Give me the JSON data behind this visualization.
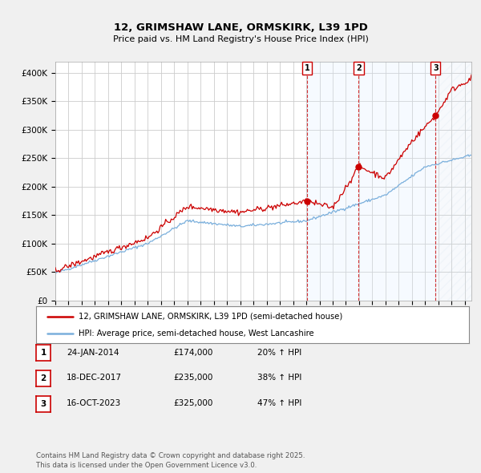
{
  "title": "12, GRIMSHAW LANE, ORMSKIRK, L39 1PD",
  "subtitle": "Price paid vs. HM Land Registry's House Price Index (HPI)",
  "ylim": [
    0,
    420000
  ],
  "xlim_start": 1995.0,
  "xlim_end": 2026.5,
  "background_color": "#f0f0f0",
  "plot_bg_color": "#ffffff",
  "grid_color": "#cccccc",
  "red_color": "#cc0000",
  "blue_color": "#7aafdc",
  "shade_color": "#ddeeff",
  "hatch_color": "#ccddee",
  "sale_dates": [
    2014.07,
    2017.97,
    2023.79
  ],
  "sale_prices": [
    174000,
    235000,
    325000
  ],
  "sale_labels": [
    "1",
    "2",
    "3"
  ],
  "legend_entries": [
    "12, GRIMSHAW LANE, ORMSKIRK, L39 1PD (semi-detached house)",
    "HPI: Average price, semi-detached house, West Lancashire"
  ],
  "table_data": [
    [
      "1",
      "24-JAN-2014",
      "£174,000",
      "20% ↑ HPI"
    ],
    [
      "2",
      "18-DEC-2017",
      "£235,000",
      "38% ↑ HPI"
    ],
    [
      "3",
      "16-OCT-2023",
      "£325,000",
      "47% ↑ HPI"
    ]
  ],
  "footer": "Contains HM Land Registry data © Crown copyright and database right 2025.\nThis data is licensed under the Open Government Licence v3.0.",
  "ytick_labels": [
    "£0",
    "£50K",
    "£100K",
    "£150K",
    "£200K",
    "£250K",
    "£300K",
    "£350K",
    "£400K"
  ],
  "ytick_values": [
    0,
    50000,
    100000,
    150000,
    200000,
    250000,
    300000,
    350000,
    400000
  ],
  "noise_seed": 42,
  "noise_red": 2500,
  "noise_blue": 1200
}
